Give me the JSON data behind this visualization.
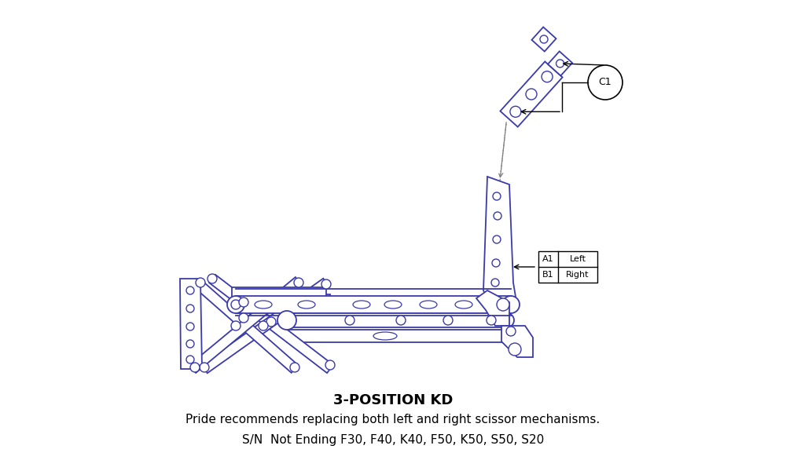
{
  "title": "3-POSITION KD",
  "subtitle1": "Pride recommends replacing both left and right scissor mechanisms.",
  "subtitle2": "S/N  Not Ending F30, F40, K40, F50, K50, S50, S20",
  "line_color": "#3a3aaa",
  "text_color": "#000000",
  "bg_color": "#ffffff",
  "title_fontsize": 13,
  "sub_fontsize": 11,
  "C1_label": "C1",
  "A1_label": "A1",
  "B1_label": "B1",
  "left_label": "Left",
  "right_label": "Right"
}
